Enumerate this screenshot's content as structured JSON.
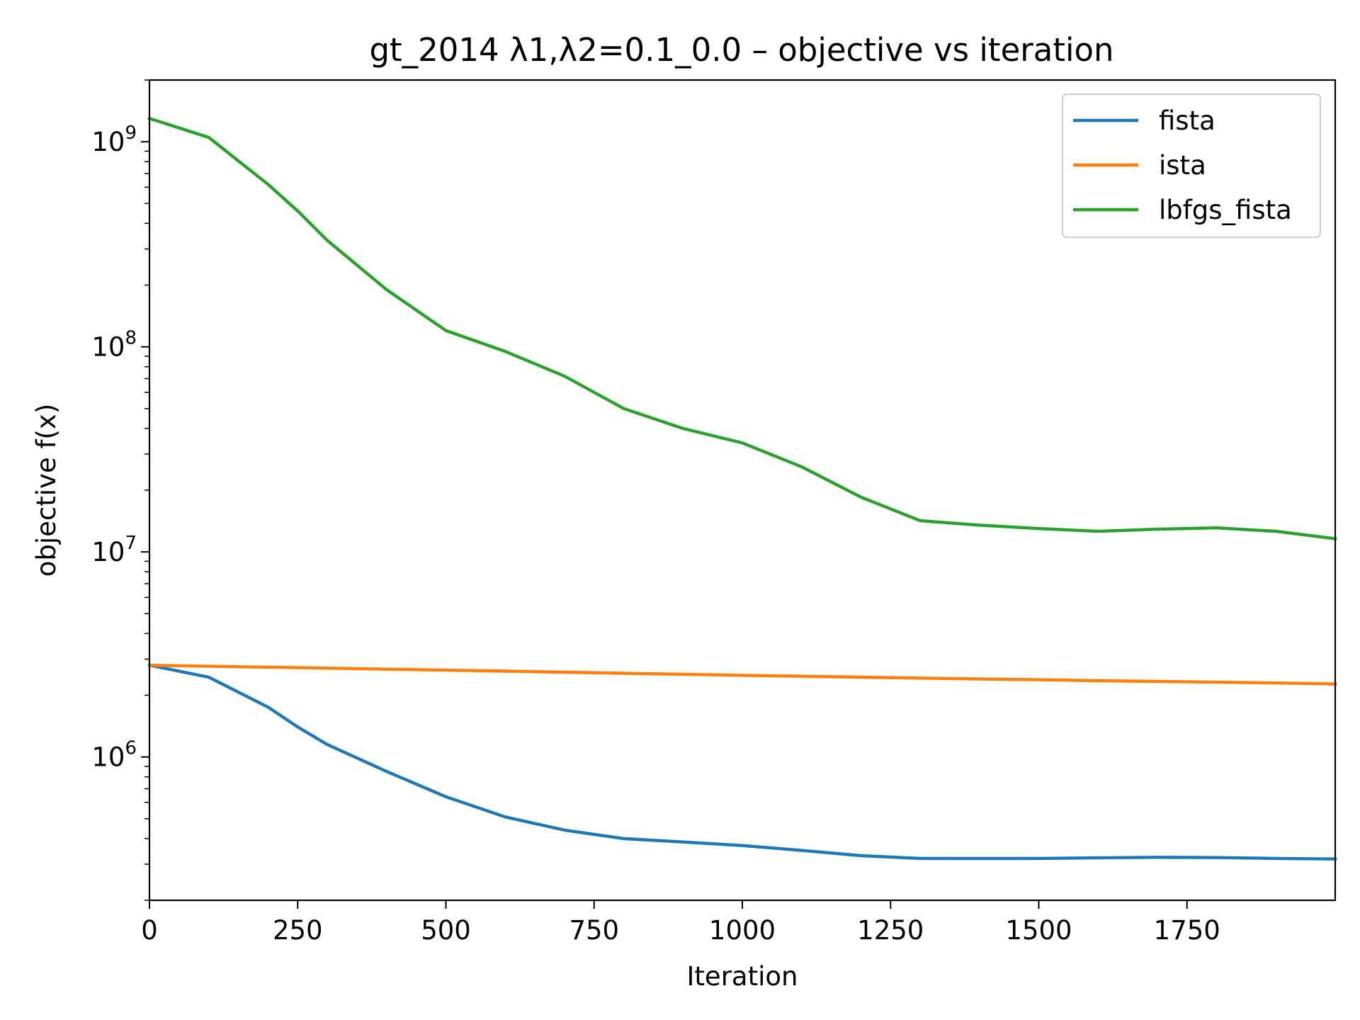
{
  "chart_data": {
    "type": "line",
    "title": "gt_2014   λ1,λ2=0.1_0.0  –  objective vs iteration",
    "xlabel": "Iteration",
    "ylabel": "objective f(x)",
    "xlim": [
      0,
      2000
    ],
    "ylim": [
      200000,
      2000000000
    ],
    "yscale": "log",
    "grid": false,
    "legend_position": "top-right",
    "x_ticks": [
      0,
      250,
      500,
      750,
      1000,
      1250,
      1500,
      1750
    ],
    "x_tick_labels": [
      "0",
      "250",
      "500",
      "750",
      "1000",
      "1250",
      "1500",
      "1750"
    ],
    "y_ticks": [
      {
        "value": 1000000,
        "base": "10",
        "exp": "6"
      },
      {
        "value": 10000000,
        "base": "10",
        "exp": "7"
      },
      {
        "value": 100000000,
        "base": "10",
        "exp": "8"
      },
      {
        "value": 1000000000,
        "base": "10",
        "exp": "9"
      }
    ],
    "x": [
      0,
      100,
      200,
      250,
      300,
      400,
      500,
      600,
      700,
      800,
      900,
      1000,
      1100,
      1200,
      1300,
      1400,
      1500,
      1600,
      1700,
      1800,
      1900,
      2000
    ],
    "series": [
      {
        "name": "fista",
        "color": "#1f77b4",
        "values": [
          2800000,
          2450000,
          1750000,
          1400000,
          1150000,
          850000,
          640000,
          510000,
          440000,
          400000,
          385000,
          370000,
          350000,
          330000,
          320000,
          320000,
          320000,
          322000,
          324000,
          323000,
          320000,
          318000
        ]
      },
      {
        "name": "ista",
        "color": "#ff7f0e",
        "values": [
          2800000,
          2770000,
          2740000,
          2725000,
          2710000,
          2680000,
          2650000,
          2620000,
          2590000,
          2560000,
          2530000,
          2500000,
          2475000,
          2450000,
          2425000,
          2400000,
          2380000,
          2355000,
          2335000,
          2315000,
          2295000,
          2270000
        ]
      },
      {
        "name": "lbfgs_fista",
        "color": "#2ca02c",
        "values": [
          1300000000,
          1050000000,
          620000000,
          460000000,
          330000000,
          190000000,
          120000000,
          95000000,
          72000000,
          50000000,
          40000000,
          34000000,
          26000000,
          18500000,
          14200000,
          13500000,
          13000000,
          12600000,
          12900000,
          13100000,
          12600000,
          11600000
        ]
      }
    ]
  }
}
